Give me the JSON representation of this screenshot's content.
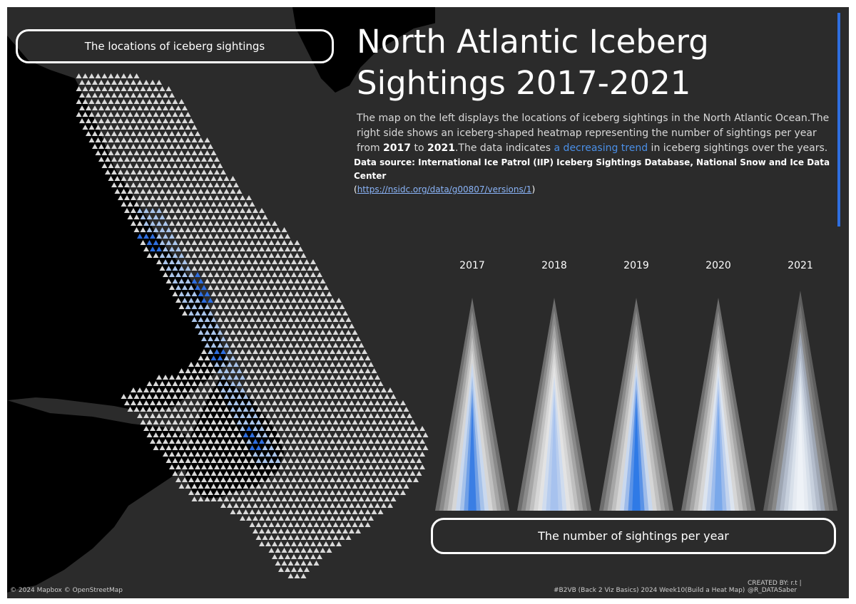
{
  "title": "North Atlantic Iceberg Sightings 2017-2021",
  "map_label": "The locations of iceberg sightings",
  "heatmap_label": "The number of sightings per year",
  "description": {
    "part1": "The map on the left displays the locations of iceberg sightings in the North Atlantic Ocean.The right side shows an iceberg-shaped heatmap representing the number of sightings per year from ",
    "year_start": "2017",
    "part2": " to ",
    "year_end": "2021",
    "part3": ".The data indicates ",
    "highlight": "a decreasing trend",
    "part4": " in iceberg sightings over the years."
  },
  "source": {
    "label": "Data source: International Ice Patrol (IIP) Iceberg Sightings Database, National Snow and Ice Data Center",
    "open": "(",
    "url": "https://nsidc.org/data/g00807/versions/1",
    "close": ")"
  },
  "years": [
    "2017",
    "2018",
    "2019",
    "2020",
    "2021"
  ],
  "footer": {
    "attribution": "© 2024 Mapbox © OpenStreetMap",
    "tag": "#B2VB (Back 2 Viz Basics)  2024 Week10(Build a Heat Map)",
    "credit": "CREATED BY: r.t | @R_DATASaber"
  },
  "colors": {
    "background": "#2b2b2b",
    "land": "#000000",
    "marker": "#d9d9d9",
    "accent": "#2f6fe0",
    "highlight_text": "#4a8fe7"
  }
}
